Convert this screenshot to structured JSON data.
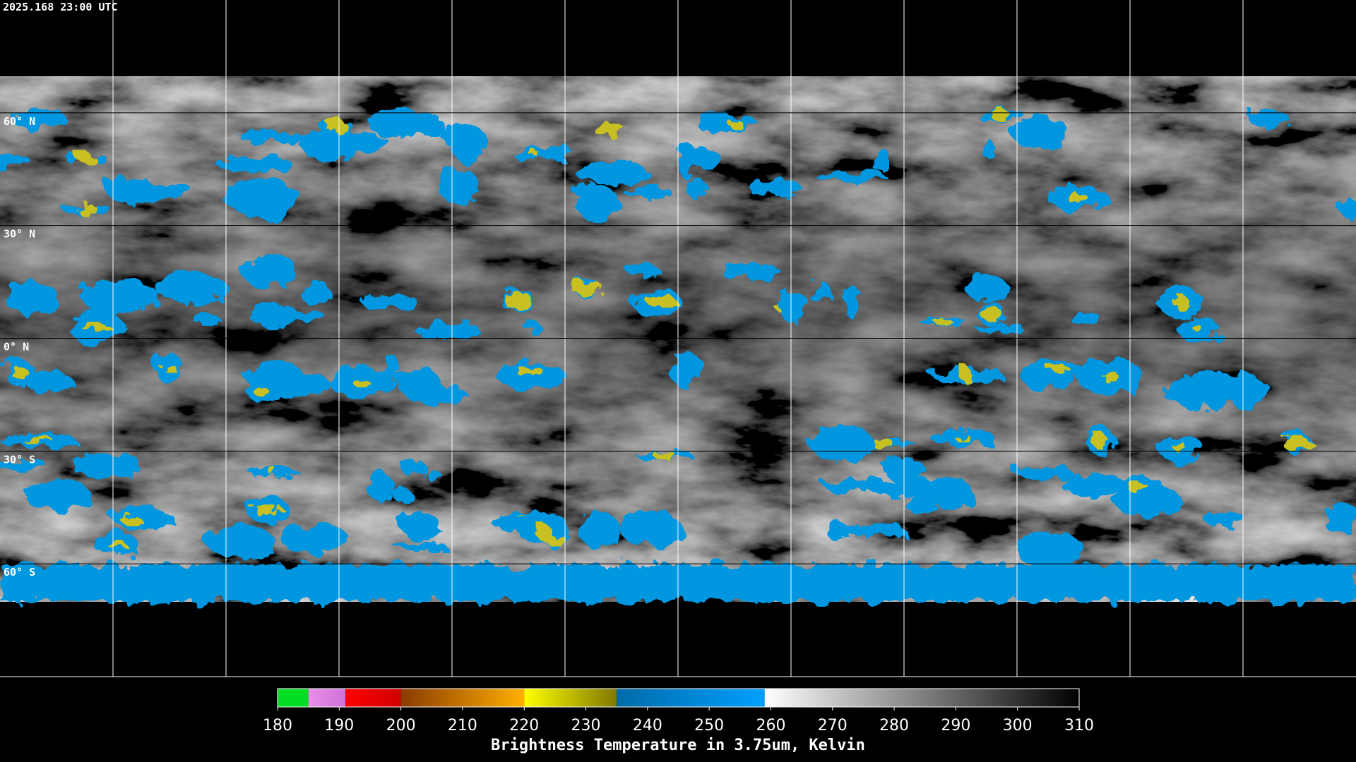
{
  "header": {
    "timestamp": "2025.168 23:00 UTC"
  },
  "map": {
    "lat_range": [
      90,
      -90
    ],
    "latitudes": [
      {
        "value": 60,
        "label": "60° N"
      },
      {
        "value": 30,
        "label": "30° N"
      },
      {
        "value": 0,
        "label": "0° N"
      },
      {
        "value": -30,
        "label": "30° S"
      },
      {
        "value": -60,
        "label": "60° S"
      }
    ]
  },
  "colorbar": {
    "title": "Brightness Temperature in 3.75um, Kelvin",
    "range": [
      180,
      310
    ],
    "ticks": [
      180,
      190,
      200,
      210,
      220,
      230,
      240,
      250,
      260,
      270,
      280,
      290,
      300,
      310
    ],
    "segments": [
      {
        "from": 180,
        "to": 185,
        "colors": [
          "#00dd22",
          "#00dd22"
        ]
      },
      {
        "from": 185,
        "to": 191,
        "colors": [
          "#e890e8",
          "#d070d8"
        ]
      },
      {
        "from": 191,
        "to": 200,
        "colors": [
          "#ff0000",
          "#d00000"
        ]
      },
      {
        "from": 200,
        "to": 220,
        "colors": [
          "#8a3a00",
          "#ffb000"
        ]
      },
      {
        "from": 220,
        "to": 235,
        "colors": [
          "#ffff00",
          "#807800"
        ]
      },
      {
        "from": 235,
        "to": 259,
        "colors": [
          "#006aa8",
          "#00a0ff"
        ]
      },
      {
        "from": 259,
        "to": 310,
        "colors": [
          "#ffffff",
          "#000000"
        ]
      }
    ]
  }
}
